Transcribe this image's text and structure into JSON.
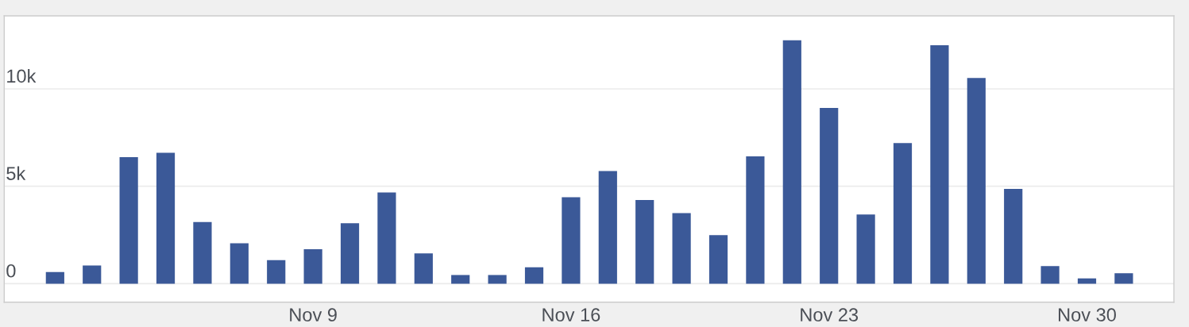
{
  "chart_data": {
    "type": "bar",
    "categories": [
      null,
      null,
      null,
      null,
      null,
      null,
      null,
      "Nov 9",
      null,
      null,
      null,
      null,
      null,
      null,
      "Nov 16",
      null,
      null,
      null,
      null,
      null,
      null,
      "Nov 23",
      null,
      null,
      null,
      null,
      null,
      null,
      "Nov 30",
      null
    ],
    "values": [
      600,
      930,
      6500,
      6720,
      3160,
      2070,
      1210,
      1770,
      3100,
      4680,
      1550,
      440,
      440,
      840,
      4440,
      5780,
      4290,
      3620,
      2490,
      6540,
      12500,
      9020,
      3550,
      7220,
      12240,
      10560,
      4870,
      900,
      270,
      540
    ],
    "color": "#3b5998",
    "ylim": [
      -950,
      13750
    ],
    "yticks": [
      0,
      {
        "value": 5000,
        "label": "5k"
      },
      {
        "value": 10000,
        "label": "10k"
      }
    ],
    "grid": "y"
  }
}
